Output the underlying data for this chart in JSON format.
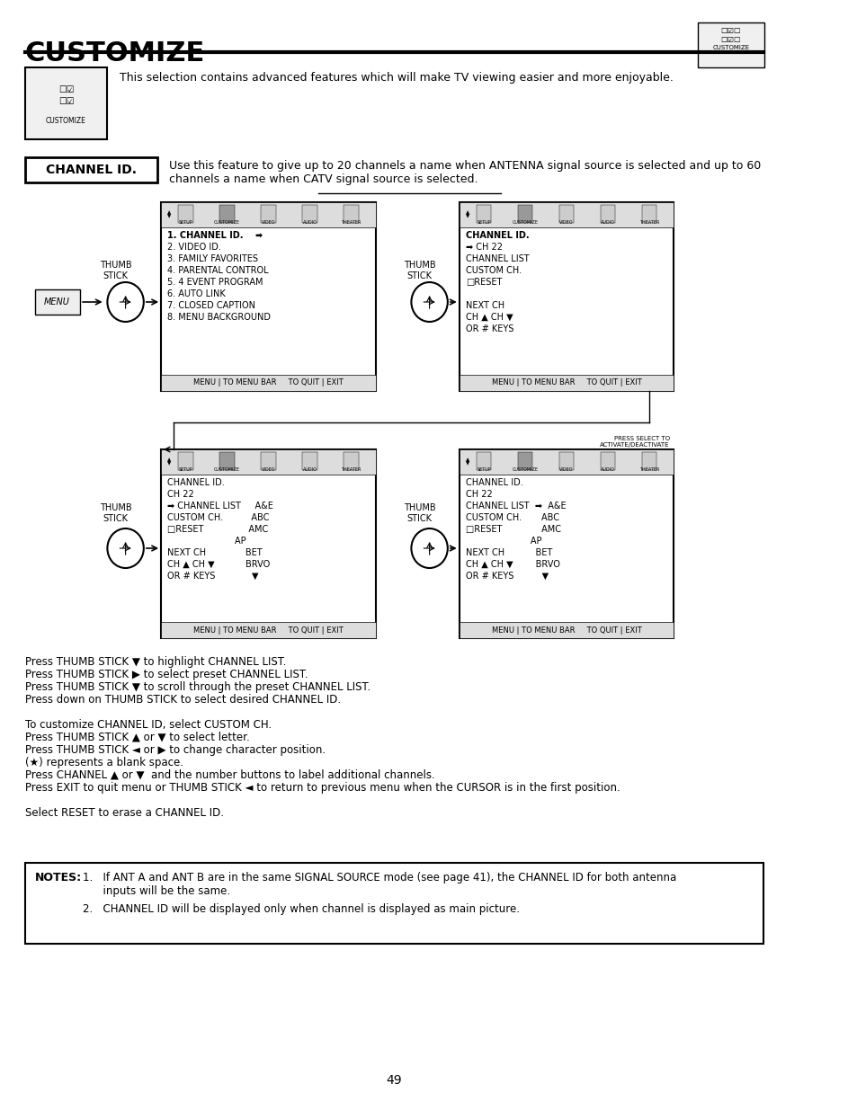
{
  "title": "CUSTOMIZE",
  "page_number": "49",
  "intro_text": "This selection contains advanced features which will make TV viewing easier and more enjoyable.",
  "channel_id_label": "CHANNEL ID.",
  "channel_id_desc": "Use this feature to give up to 20 channels a name when ANTENNA signal source is selected and up to 60\nchannels a name when CATV signal source is selected.",
  "screen1_lines": [
    "1. CHANNEL ID.    ➡",
    "2. VIDEO ID.",
    "3. FAMILY FAVORITES",
    "4. PARENTAL CONTROL",
    "5. 4 EVENT PROGRAM",
    "6. AUTO LINK",
    "7. CLOSED CAPTION",
    "8. MENU BACKGROUND"
  ],
  "screen1_footer": "MENU | TO MENU BAR     TO QUIT | EXIT",
  "screen2_lines": [
    "CHANNEL ID.",
    "➡ CH 22",
    "CHANNEL LIST",
    "CUSTOM CH.",
    "□RESET",
    "",
    "NEXT CH",
    "CH ▲ CH ▼",
    "OR # KEYS"
  ],
  "screen2_footer": "MENU | TO MENU BAR     TO QUIT | EXIT",
  "screen3_lines": [
    "CHANNEL ID.",
    "CH 22",
    "➡ CHANNEL LIST     A&E",
    "CUSTOM CH.          ABC",
    "□RESET                AMC",
    "                        AP",
    "NEXT CH              BET",
    "CH ▲ CH ▼           BRVO",
    "OR # KEYS             ▼"
  ],
  "screen3_footer": "MENU | TO MENU BAR     TO QUIT | EXIT",
  "screen4_lines": [
    "CHANNEL ID.",
    "CH 22",
    "CHANNEL LIST  ➡  A&E",
    "CUSTOM CH.       ABC",
    "□RESET              AMC",
    "                       AP",
    "NEXT CH           BET",
    "CH ▲ CH ▼        BRVO",
    "OR # KEYS          ▼"
  ],
  "screen4_note": "PRESS SELECT TO\nACTIVATE/DEACTIVATE",
  "screen4_footer": "MENU | TO MENU BAR     TO QUIT | EXIT",
  "instructions": [
    "Press THUMB STICK ▼ to highlight CHANNEL LIST.",
    "Press THUMB STICK ▶ to select preset CHANNEL LIST.",
    "Press THUMB STICK ▼ to scroll through the preset CHANNEL LIST.",
    "Press down on THUMB STICK to select desired CHANNEL ID.",
    "",
    "To customize CHANNEL ID, select CUSTOM CH.",
    "Press THUMB STICK ▲ or ▼ to select letter.",
    "Press THUMB STICK ◄ or ▶ to change character position.",
    "(★) represents a blank space.",
    "Press CHANNEL ▲ or ▼  and the number buttons to label additional channels.",
    "Press EXIT to quit menu or THUMB STICK ◄ to return to previous menu when the CURSOR is in the first position.",
    "",
    "Select RESET to erase a CHANNEL ID."
  ],
  "notes_label": "NOTES:",
  "notes": [
    "1.   If ANT A and ANT B are in the same SIGNAL SOURCE mode (see page 41), the CHANNEL ID for both antenna\n      inputs will be the same.",
    "2.   CHANNEL ID will be displayed only when channel is displayed as main picture."
  ],
  "bg_color": "#ffffff",
  "text_color": "#000000",
  "border_color": "#000000"
}
